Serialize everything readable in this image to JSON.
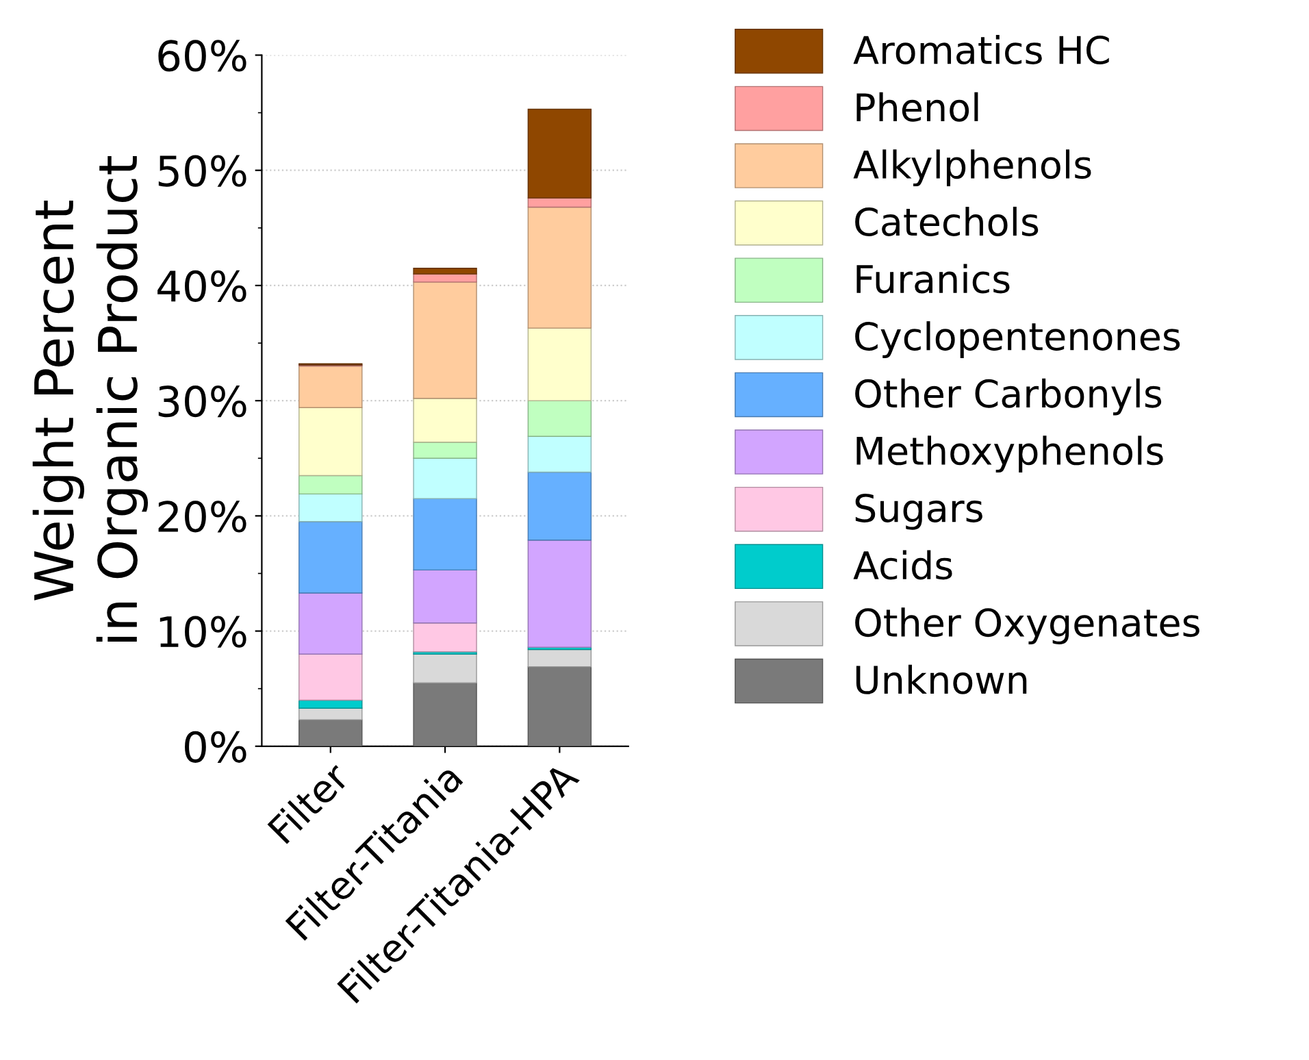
{
  "chart_data": {
    "type": "bar",
    "stacked": true,
    "ylabel": "Weight Percent\nin Organic Product",
    "categories": [
      "Filter",
      "Filter-Titania",
      "Filter-Titania-HPA"
    ],
    "series": [
      {
        "name": "Unknown",
        "color": "#7a7a7a",
        "values": [
          2.3,
          5.5,
          6.9
        ]
      },
      {
        "name": "Other Oxygenates",
        "color": "#d9d9d9",
        "values": [
          1.0,
          2.5,
          1.5
        ]
      },
      {
        "name": "Acids",
        "color": "#00cccc",
        "values": [
          0.7,
          0.2,
          0.2
        ]
      },
      {
        "name": "Sugars",
        "color": "#ffc8e4",
        "values": [
          4.0,
          2.5,
          0
        ]
      },
      {
        "name": "Methoxyphenols",
        "color": "#d2a5ff",
        "values": [
          5.3,
          4.6,
          9.3
        ]
      },
      {
        "name": "Other Carbonyls",
        "color": "#66b0ff",
        "values": [
          6.2,
          6.2,
          5.9
        ]
      },
      {
        "name": "Cyclopentenones",
        "color": "#c0ffff",
        "values": [
          2.4,
          3.5,
          3.1
        ]
      },
      {
        "name": "Furanics",
        "color": "#c0ffc0",
        "values": [
          1.6,
          1.4,
          3.1
        ]
      },
      {
        "name": "Catechols",
        "color": "#ffffcc",
        "values": [
          5.9,
          3.8,
          6.3
        ]
      },
      {
        "name": "Alkylphenols",
        "color": "#ffcc9e",
        "values": [
          3.6,
          10.1,
          10.5
        ]
      },
      {
        "name": "Phenol",
        "color": "#ffa0a0",
        "values": [
          0.1,
          0.7,
          0.8
        ]
      },
      {
        "name": "Aromatics HC",
        "color": "#8f4700",
        "values": [
          0.1,
          0.5,
          7.7
        ]
      }
    ],
    "ylim": [
      0,
      60
    ],
    "yticks": [
      {
        "value": 0,
        "label": "0%"
      },
      {
        "value": 10,
        "label": "10%"
      },
      {
        "value": 20,
        "label": "20%"
      },
      {
        "value": 30,
        "label": "30%"
      },
      {
        "value": 40,
        "label": "40%"
      },
      {
        "value": 50,
        "label": "50%"
      },
      {
        "value": 60,
        "label": "60%"
      }
    ],
    "grid": "y",
    "legend": "right"
  }
}
